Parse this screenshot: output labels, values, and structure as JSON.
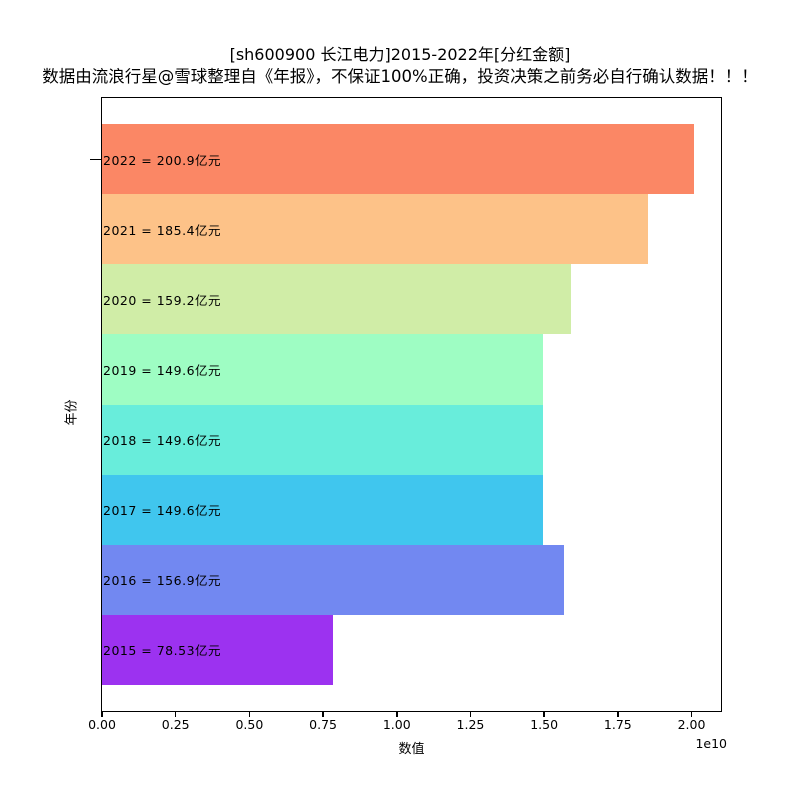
{
  "title": "[sh600900 长江电力]2015-2022年[分红金额]",
  "subtitle": "数据由流浪行星@雪球整理自《年报》，不保证100%正确，投资决策之前务必自行确认数据！！！",
  "colors": {
    "background": "#ffffff",
    "axis": "#000000",
    "text": "#000000"
  },
  "chart_data": {
    "type": "bar",
    "orientation": "horizontal",
    "title": "[sh600900 长江电力]2015-2022年[分红金额]",
    "subtitle": "数据由流浪行星@雪球整理自《年报》，不保证100%正确，投资决策之前务必自行确认数据！！！",
    "xlabel": "数值",
    "ylabel": "年份",
    "x_offset_label": "1e10",
    "grid": false,
    "legend": false,
    "xlim_e10": [
      0,
      2.1
    ],
    "categories": [
      "2022",
      "2021",
      "2020",
      "2019",
      "2018",
      "2017",
      "2016",
      "2015"
    ],
    "values_e10": [
      2.009,
      1.854,
      1.592,
      1.496,
      1.496,
      1.496,
      1.569,
      0.7853
    ],
    "amounts_yi_yuan": [
      200.9,
      185.4,
      159.2,
      149.6,
      149.6,
      149.6,
      156.9,
      78.53
    ],
    "bar_labels": [
      "2022 = 200.9亿元",
      "2021 = 185.4亿元",
      "2020 = 159.2亿元",
      "2019 = 149.6亿元",
      "2018 = 149.6亿元",
      "2017 = 149.6亿元",
      "2016 = 156.9亿元",
      "2015 = 78.53亿元"
    ],
    "bar_colors": [
      "#FB8765",
      "#FDC288",
      "#D0EDA7",
      "#9EFDC3",
      "#68EDDB",
      "#40C6EE",
      "#7288F1",
      "#9C32F0"
    ],
    "x_ticks": [
      {
        "value_e10": 0.0,
        "label": "0.00"
      },
      {
        "value_e10": 0.25,
        "label": "0.25"
      },
      {
        "value_e10": 0.5,
        "label": "0.50"
      },
      {
        "value_e10": 0.75,
        "label": "0.75"
      },
      {
        "value_e10": 1.0,
        "label": "1.00"
      },
      {
        "value_e10": 1.25,
        "label": "1.25"
      },
      {
        "value_e10": 1.5,
        "label": "1.50"
      },
      {
        "value_e10": 1.75,
        "label": "1.75"
      },
      {
        "value_e10": 2.0,
        "label": "2.00"
      }
    ]
  }
}
